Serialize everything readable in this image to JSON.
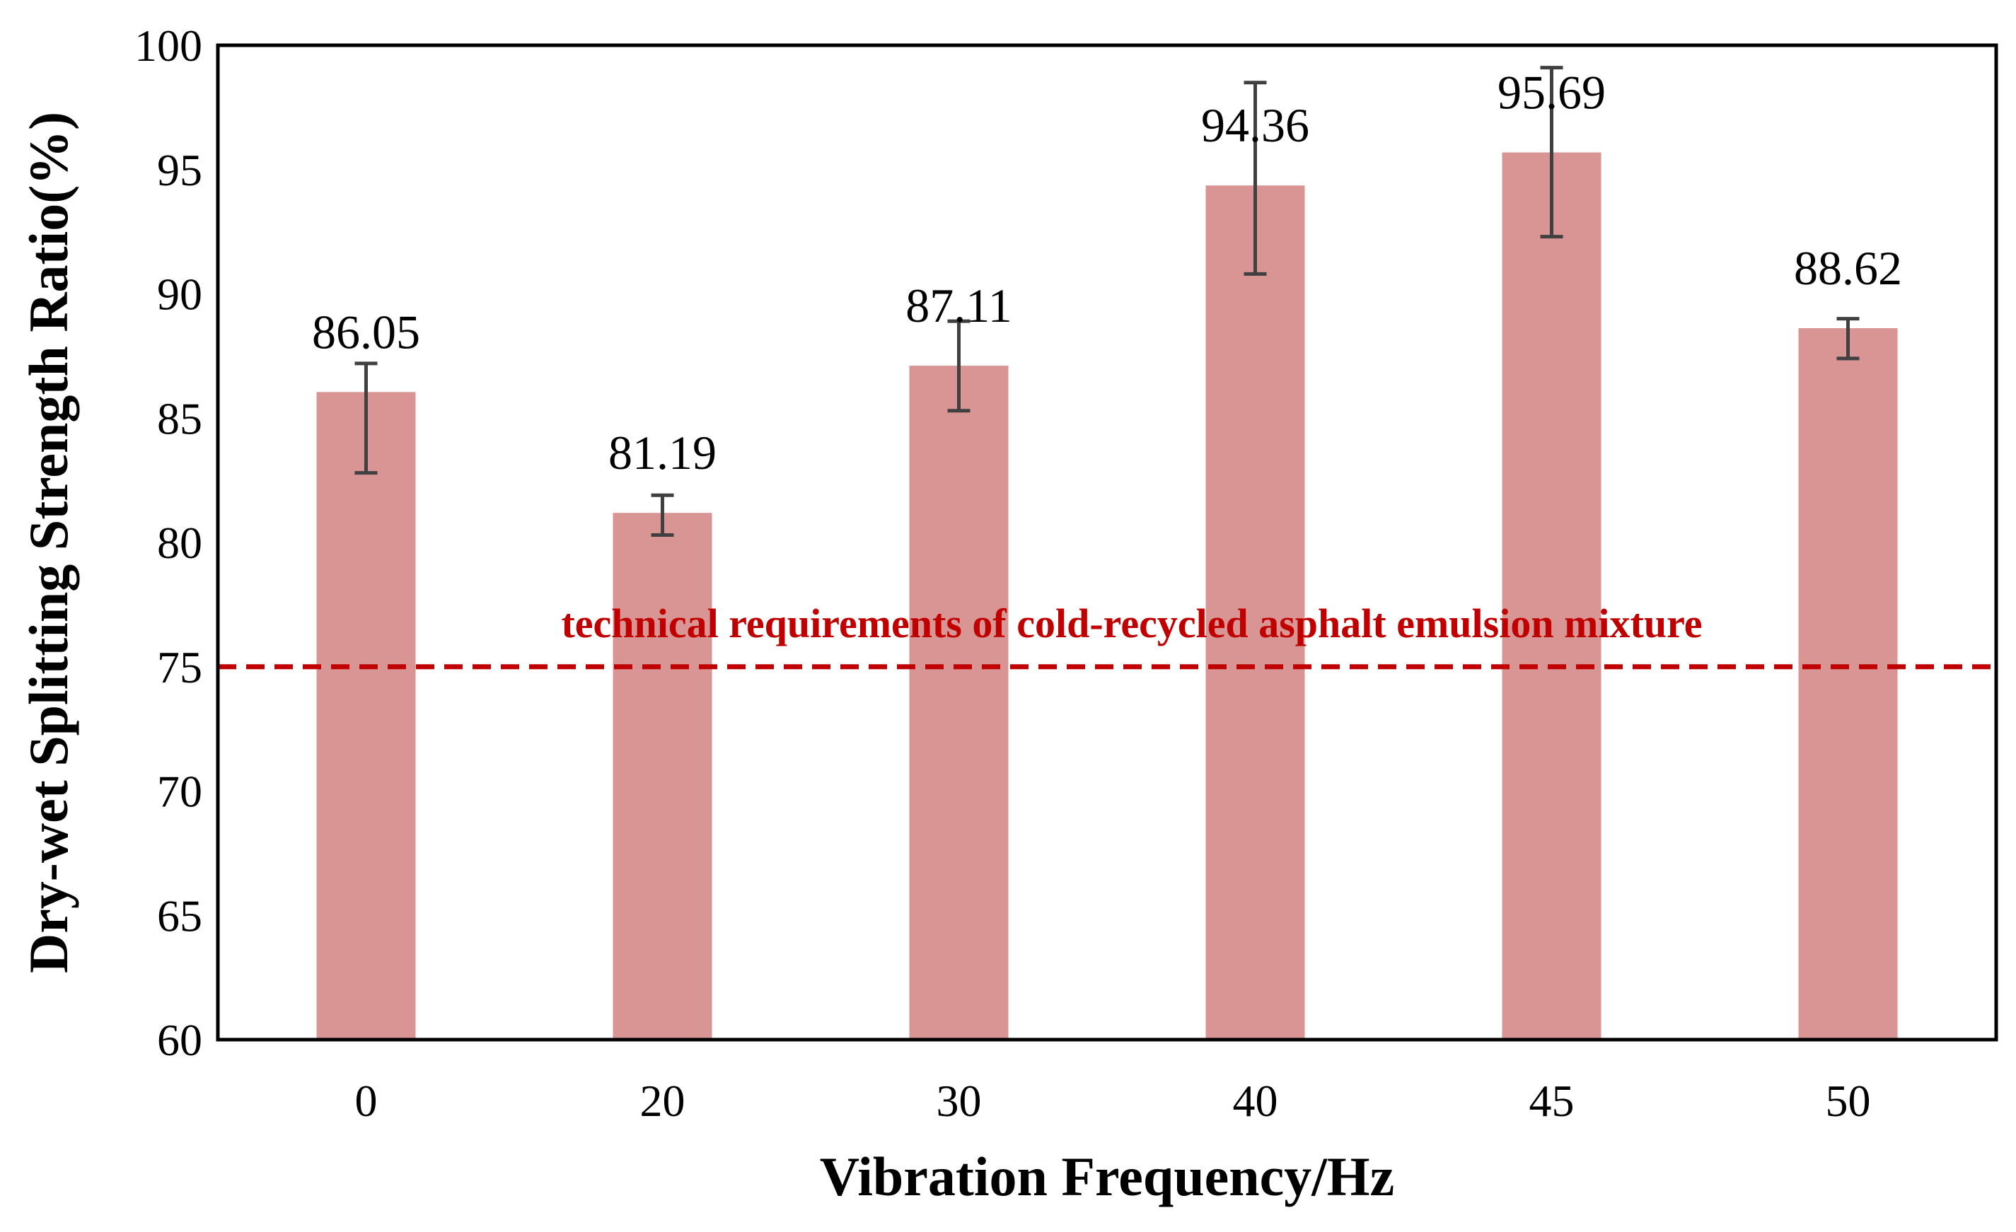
{
  "chart_data": {
    "type": "bar",
    "title": "",
    "xlabel": "Vibration Frequency/Hz",
    "ylabel": "Dry-wet Splitting Strength Ratio(%)",
    "categories": [
      "0",
      "20",
      "30",
      "40",
      "45",
      "50"
    ],
    "values": [
      86.05,
      81.19,
      87.11,
      94.36,
      95.69,
      88.62
    ],
    "value_labels": [
      "86.05",
      "81.19",
      "87.11",
      "94.36",
      "95.69",
      "88.62"
    ],
    "error_bars": [
      {
        "low": 82.8,
        "high": 87.2
      },
      {
        "low": 80.3,
        "high": 81.9
      },
      {
        "low": 85.3,
        "high": 88.9
      },
      {
        "low": 90.8,
        "high": 98.5
      },
      {
        "low": 92.3,
        "high": 99.1
      },
      {
        "low": 87.4,
        "high": 89.0
      }
    ],
    "ylim": [
      60,
      100
    ],
    "yticks": [
      "60",
      "65",
      "70",
      "75",
      "80",
      "85",
      "90",
      "95",
      "100"
    ],
    "reference_line": {
      "value": 75,
      "label": "technical requirements of cold-recycled asphalt emulsion mixture",
      "style": "dashed"
    },
    "grid": false,
    "legend": "none",
    "colors": {
      "bar": "#d99594",
      "error_bar": "#404040",
      "reference_line": "#c00000",
      "axis": "#000000"
    }
  }
}
